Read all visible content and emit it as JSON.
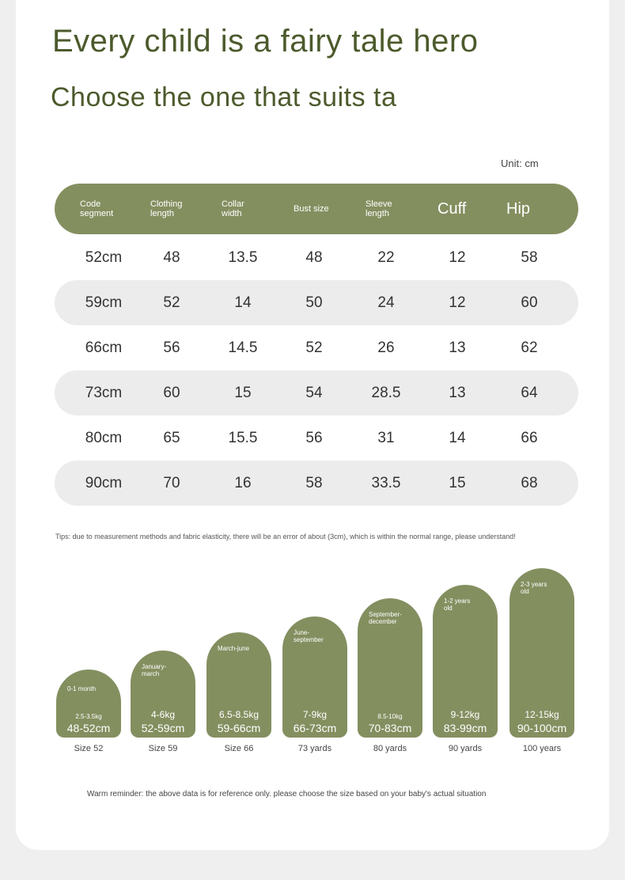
{
  "title": "Every child is a fairy tale hero",
  "subtitle": "Choose the one that suits ta",
  "unit": "Unit: cm",
  "table": {
    "headers": [
      {
        "label": "Code\nsegment",
        "big": false
      },
      {
        "label": "Clothing\nlength",
        "big": false
      },
      {
        "label": "Collar\nwidth",
        "big": false
      },
      {
        "label": "Bust size",
        "big": false
      },
      {
        "label": "Sleeve\nlength",
        "big": false
      },
      {
        "label": "Cuff",
        "big": true
      },
      {
        "label": "Hip",
        "big": true
      }
    ],
    "rows": [
      [
        "52cm",
        "48",
        "13.5",
        "48",
        "22",
        "12",
        "58"
      ],
      [
        "59cm",
        "52",
        "14",
        "50",
        "24",
        "12",
        "60"
      ],
      [
        "66cm",
        "56",
        "14.5",
        "52",
        "26",
        "13",
        "62"
      ],
      [
        "73cm",
        "60",
        "15",
        "54",
        "28.5",
        "13",
        "64"
      ],
      [
        "80cm",
        "65",
        "15.5",
        "56",
        "31",
        "14",
        "66"
      ],
      [
        "90cm",
        "70",
        "16",
        "58",
        "33.5",
        "15",
        "68"
      ]
    ]
  },
  "tips": "Tips: due to measurement methods and fabric elasticity, there will be an error of about (3cm), which is within the normal range, please understand!",
  "sizes": [
    {
      "age": "0-1 month",
      "weight": "2.5-3.5kg",
      "length": "48-52cm",
      "label": "Size 52"
    },
    {
      "age": "January-\nmarch",
      "weight": "4-6kg",
      "length": "52-59cm",
      "label": "Size 59"
    },
    {
      "age": "March-june",
      "weight": "6.5-8.5kg",
      "length": "59-66cm",
      "label": "Size 66"
    },
    {
      "age": "June-\nseptember",
      "weight": "7-9kg",
      "length": "66-73cm",
      "label": "73 yards"
    },
    {
      "age": "September-\ndecember",
      "weight": "8.5-10kg",
      "length": "70-83cm",
      "label": "80 yards"
    },
    {
      "age": "1-2 years\nold",
      "weight": "9-12kg",
      "length": "83-99cm",
      "label": "90 yards"
    },
    {
      "age": "2-3 years\nold",
      "weight": "12-15kg",
      "length": "90-100cm",
      "label": "100 years"
    }
  ],
  "warm_reminder": "Warm reminder: the above data is for reference only. please choose the size based on your baby's actual situation",
  "colors": {
    "accent": "#848f60",
    "title": "#4c5a2c",
    "row_shade": "#ececec"
  }
}
